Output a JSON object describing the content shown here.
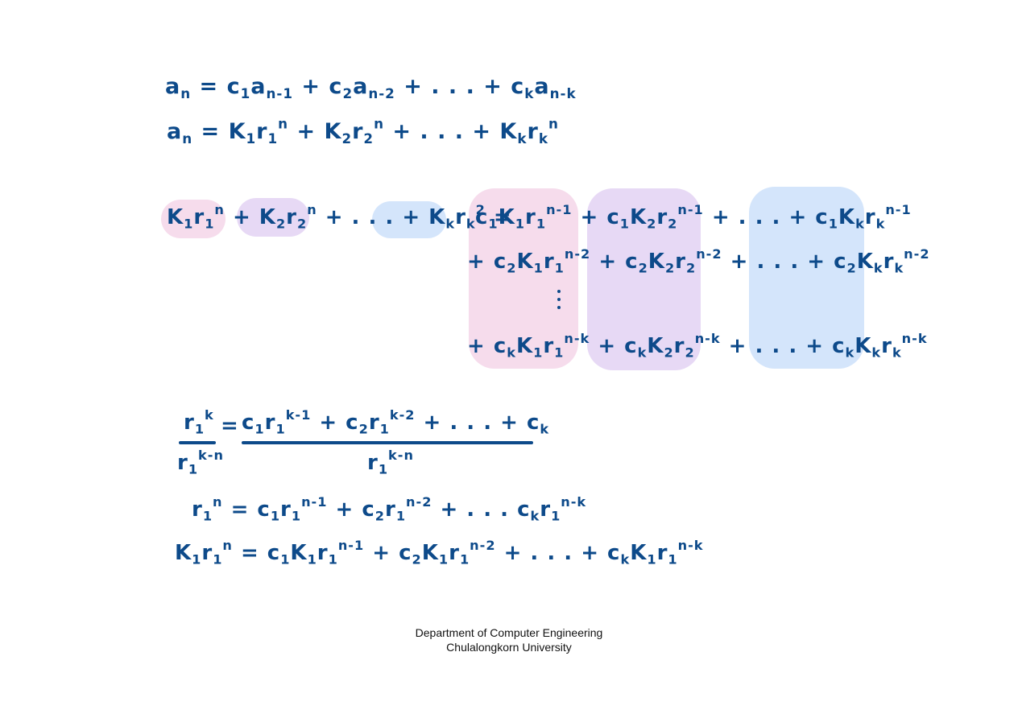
{
  "colors": {
    "ink": "#0d4a8a",
    "pink": "#f6dcec",
    "lavender": "#e7d9f5",
    "blue": "#d4e5fb"
  },
  "footer": {
    "line1": "Department of Computer Engineering",
    "line2": "Chulalongkorn University"
  }
}
